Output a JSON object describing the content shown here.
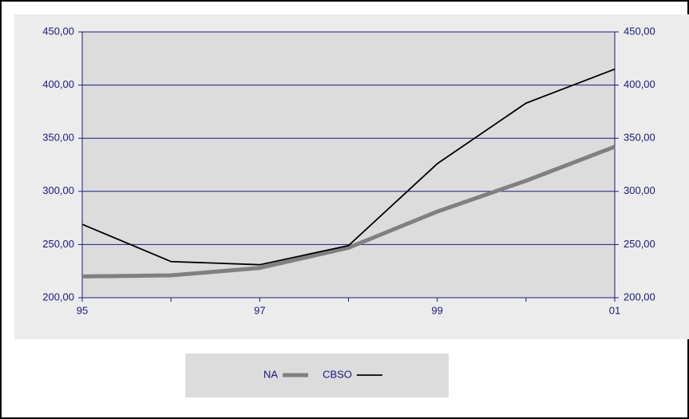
{
  "chart_data": {
    "type": "line",
    "categories": [
      "95",
      null,
      "97",
      null,
      "99",
      null,
      "01"
    ],
    "series": [
      {
        "name": "NA",
        "color": "#808080",
        "values": [
          220,
          221,
          228,
          247,
          281,
          310,
          342
        ]
      },
      {
        "name": "CBSO",
        "color": "#000000",
        "values": [
          269,
          234,
          231,
          249,
          326,
          383,
          415
        ]
      }
    ],
    "ylim": [
      200,
      450
    ],
    "yticks": [
      {
        "value": 200,
        "label": "200,00"
      },
      {
        "value": 250,
        "label": "250,00"
      },
      {
        "value": 300,
        "label": "300,00"
      },
      {
        "value": 350,
        "label": "350,00"
      },
      {
        "value": 400,
        "label": "400,00"
      },
      {
        "value": 450,
        "label": "450,00"
      }
    ],
    "y2lim": [
      200,
      450
    ],
    "y2ticks": [
      {
        "value": 200,
        "label": "200,00"
      },
      {
        "value": 250,
        "label": "250,00"
      },
      {
        "value": 300,
        "label": "300,00"
      },
      {
        "value": 350,
        "label": "350,00"
      },
      {
        "value": 400,
        "label": "400,00"
      },
      {
        "value": 450,
        "label": "450,00"
      }
    ],
    "grid": true
  }
}
